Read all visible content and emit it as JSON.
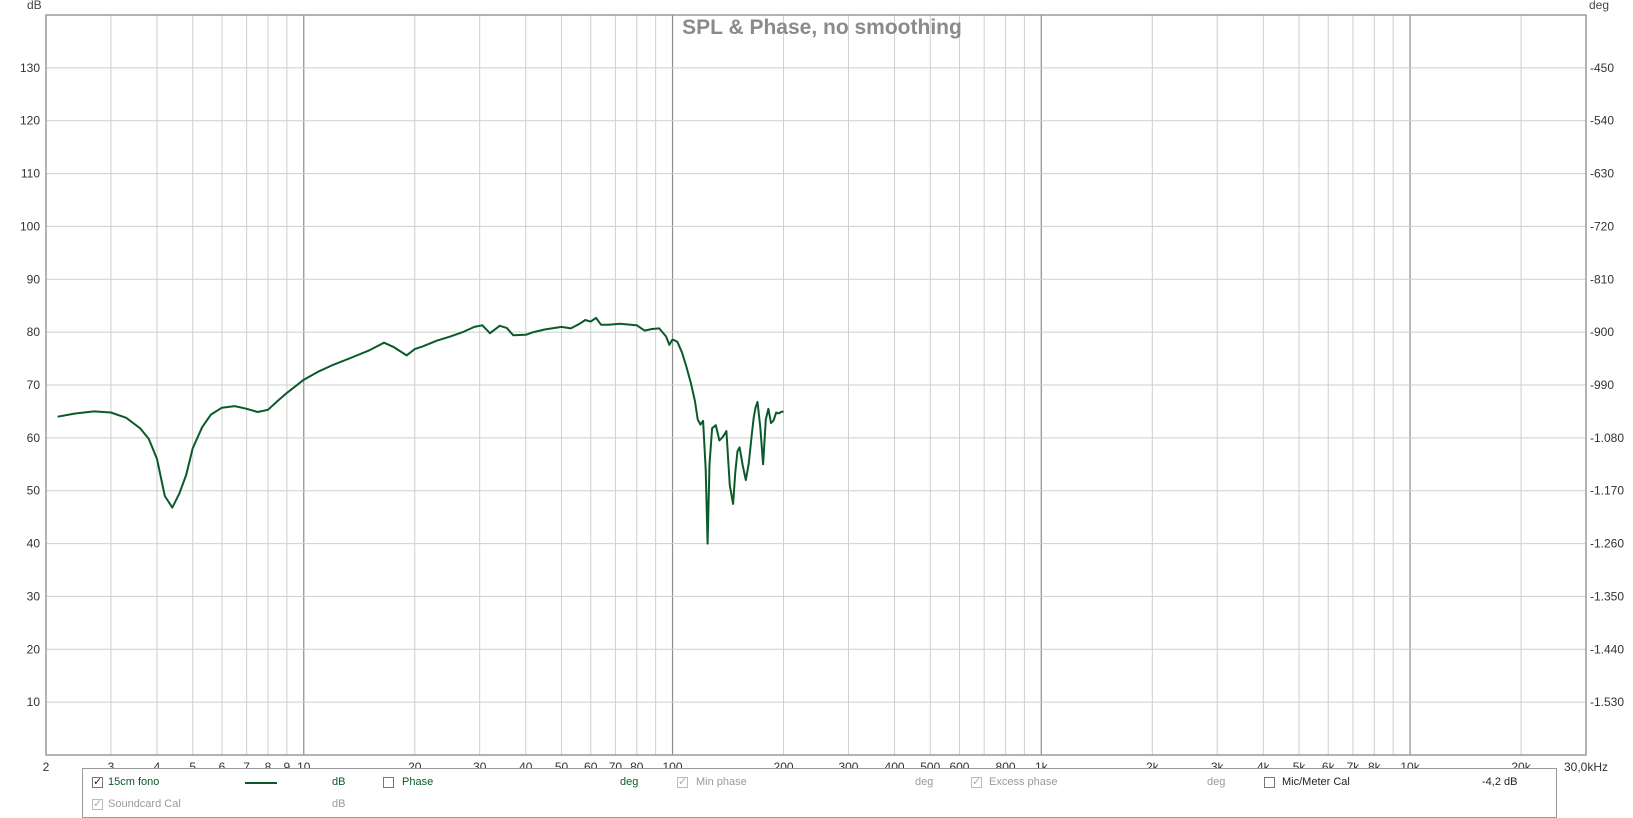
{
  "chart_data": {
    "type": "line",
    "title": "SPL & Phase, no smoothing",
    "xlabel": "",
    "ylabel": "dB",
    "y2label": "deg",
    "x_scale": "log",
    "xlim": [
      2,
      30000
    ],
    "ylim": [
      0,
      140
    ],
    "y2lim": [
      -1620,
      -360
    ],
    "x_tick_labels": [
      {
        "value": 2,
        "label": "2"
      },
      {
        "value": 3,
        "label": "3"
      },
      {
        "value": 4,
        "label": "4"
      },
      {
        "value": 5,
        "label": "5"
      },
      {
        "value": 6,
        "label": "6"
      },
      {
        "value": 7,
        "label": "7"
      },
      {
        "value": 8,
        "label": "8"
      },
      {
        "value": 9,
        "label": "9"
      },
      {
        "value": 10,
        "label": "10"
      },
      {
        "value": 20,
        "label": "20"
      },
      {
        "value": 30,
        "label": "30"
      },
      {
        "value": 40,
        "label": "40"
      },
      {
        "value": 50,
        "label": "50"
      },
      {
        "value": 60,
        "label": "60"
      },
      {
        "value": 70,
        "label": "70"
      },
      {
        "value": 80,
        "label": "80"
      },
      {
        "value": 100,
        "label": "100"
      },
      {
        "value": 200,
        "label": "200"
      },
      {
        "value": 300,
        "label": "300"
      },
      {
        "value": 400,
        "label": "400"
      },
      {
        "value": 500,
        "label": "500"
      },
      {
        "value": 600,
        "label": "600"
      },
      {
        "value": 800,
        "label": "800"
      },
      {
        "value": 1000,
        "label": "1k"
      },
      {
        "value": 2000,
        "label": "2k"
      },
      {
        "value": 3000,
        "label": "3k"
      },
      {
        "value": 4000,
        "label": "4k"
      },
      {
        "value": 5000,
        "label": "5k"
      },
      {
        "value": 6000,
        "label": "6k"
      },
      {
        "value": 7000,
        "label": "7k"
      },
      {
        "value": 8000,
        "label": "8k"
      },
      {
        "value": 10000,
        "label": "10k"
      },
      {
        "value": 20000,
        "label": "20k"
      },
      {
        "value": 30000,
        "label": "30,0kHz"
      }
    ],
    "y_ticks": [
      10,
      20,
      30,
      40,
      50,
      60,
      70,
      80,
      90,
      100,
      110,
      120,
      130
    ],
    "y2_tick_labels": [
      "-1.530",
      "-1.440",
      "-1.350",
      "-1.260",
      "-1.170",
      "-1.080",
      "-990",
      "-900",
      "-810",
      "-720",
      "-630",
      "-540",
      "-450"
    ],
    "grid": true,
    "series": [
      {
        "name": "15cm fono",
        "color": "#0a5a2a",
        "x": [
          2.15,
          2.4,
          2.7,
          3.0,
          3.3,
          3.6,
          3.8,
          4.0,
          4.2,
          4.4,
          4.6,
          4.8,
          5.0,
          5.3,
          5.6,
          6.0,
          6.5,
          7.0,
          7.5,
          8.0,
          8.5,
          9.0,
          10.0,
          11.0,
          12.0,
          13.5,
          15.0,
          16.5,
          17.5,
          19.0,
          20.0,
          21.0,
          23.0,
          25.0,
          27.0,
          29.0,
          30.5,
          32.0,
          34.0,
          35.5,
          37.0,
          40.0,
          42.0,
          45.0,
          50.0,
          53.0,
          56.0,
          58.0,
          60.0,
          62.0,
          64.0,
          67.0,
          72.0,
          80.0,
          84.0,
          88.0,
          92.0,
          96.0,
          98.0,
          100.0,
          103.0,
          106.0,
          109.0,
          112.0,
          115.0,
          117.0,
          119.0,
          121.0,
          123.0,
          124.5,
          126.0,
          128.0,
          131.0,
          134.0,
          137.0,
          140.0,
          143.0,
          146.0,
          148.0,
          150.0,
          152.0,
          155.0,
          158.0,
          161.0,
          164.0,
          166.0,
          168.0,
          170.0,
          173.0,
          176.0,
          179.0,
          182.0,
          185.0,
          188.0,
          191.0,
          194.0,
          197.0,
          200.0
        ],
        "values": [
          64.0,
          64.6,
          65.0,
          64.8,
          63.8,
          61.8,
          59.8,
          56.0,
          49.0,
          46.8,
          49.5,
          53.0,
          58.0,
          62.0,
          64.4,
          65.7,
          66.0,
          65.5,
          64.9,
          65.3,
          67.0,
          68.5,
          71.0,
          72.6,
          73.8,
          75.2,
          76.5,
          78.0,
          77.2,
          75.6,
          76.8,
          77.3,
          78.4,
          79.2,
          80.0,
          81.0,
          81.3,
          79.8,
          81.2,
          80.8,
          79.4,
          79.5,
          80.0,
          80.5,
          81.0,
          80.7,
          81.6,
          82.3,
          82.0,
          82.7,
          81.4,
          81.4,
          81.6,
          81.3,
          80.3,
          80.6,
          80.7,
          79.2,
          77.6,
          78.6,
          78.2,
          76.2,
          73.5,
          70.5,
          67.0,
          63.5,
          62.5,
          63.2,
          54.0,
          40.0,
          55.0,
          61.8,
          62.4,
          59.5,
          60.2,
          61.3,
          51.0,
          47.5,
          53.5,
          57.5,
          58.2,
          54.8,
          52.0,
          55.2,
          60.5,
          63.8,
          65.8,
          66.8,
          62.0,
          55.0,
          63.5,
          65.5,
          62.8,
          63.3,
          64.8,
          64.6,
          64.9,
          65.0
        ]
      }
    ]
  },
  "legend": {
    "row1": [
      {
        "label": "15cm fono",
        "unit": "dB",
        "checked": true,
        "enabled": true,
        "swatch": true
      },
      {
        "label": "Phase",
        "unit": "deg",
        "checked": false,
        "enabled": true,
        "swatch": false
      },
      {
        "label": "Min phase",
        "unit": "deg",
        "checked": true,
        "enabled": false,
        "swatch": false
      },
      {
        "label": "Excess phase",
        "unit": "deg",
        "checked": true,
        "enabled": false,
        "swatch": false
      },
      {
        "label": "Mic/Meter Cal",
        "unit": "-4,2 dB",
        "checked": false,
        "enabled": true,
        "swatch": false
      }
    ],
    "row2": [
      {
        "label": "Soundcard Cal",
        "unit": "dB",
        "checked": true,
        "enabled": false,
        "swatch": false
      }
    ]
  },
  "colors": {
    "curve": "#0a5a2a",
    "grid": "#cfcfcf",
    "decade_grid": "#8c8c8c",
    "title": "#8a8a8a"
  }
}
